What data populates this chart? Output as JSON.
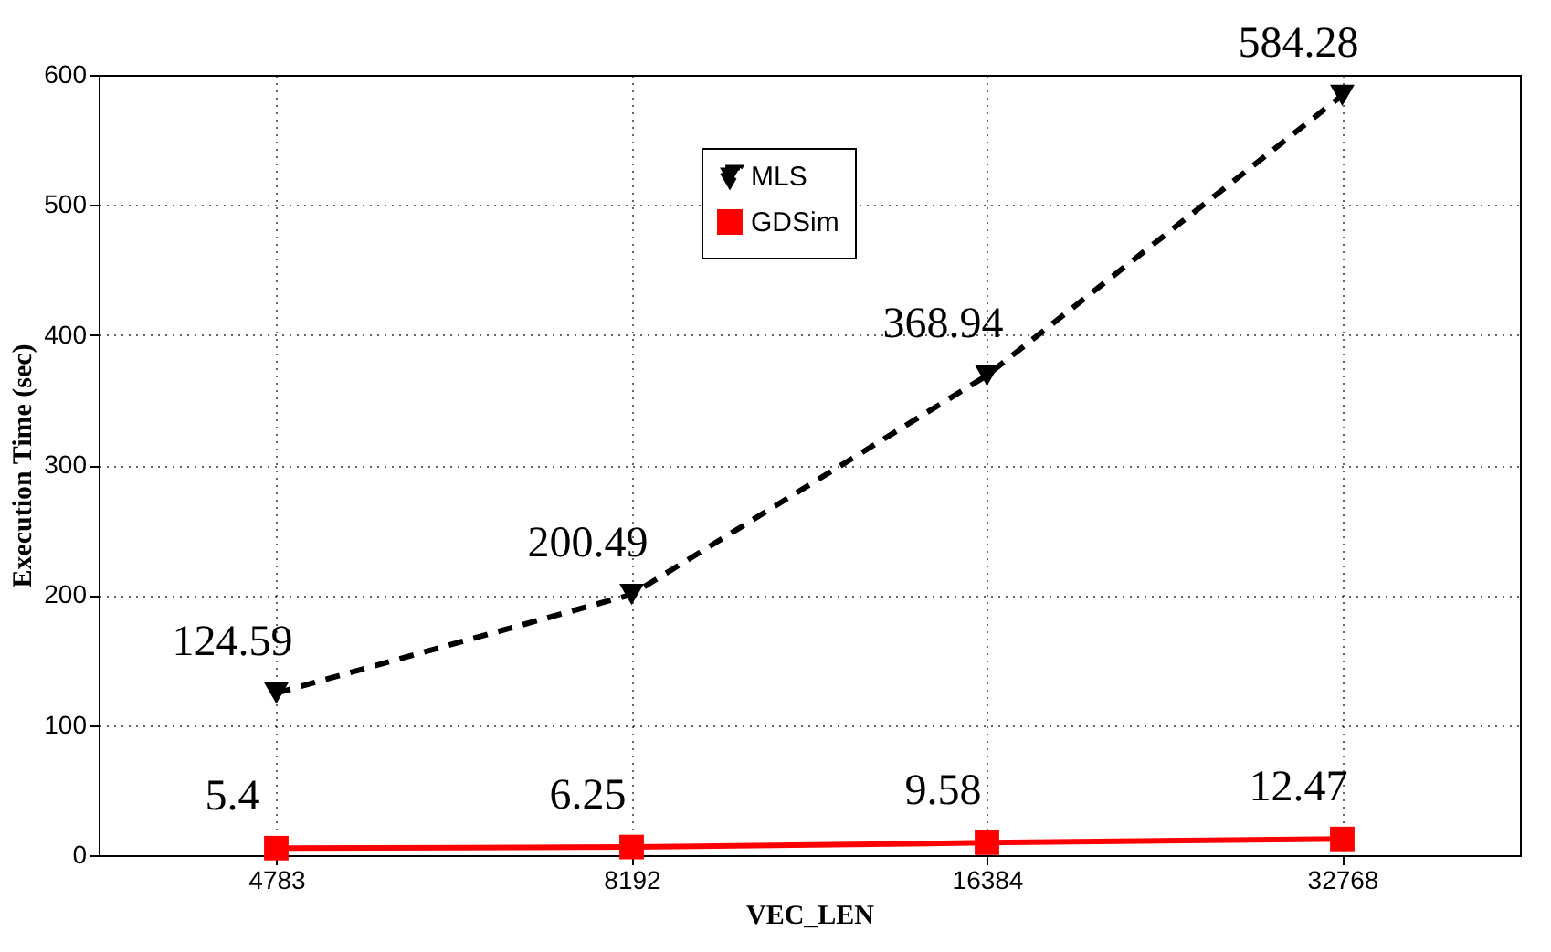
{
  "chart_data": {
    "type": "line",
    "xlabel": "VEC_LEN",
    "ylabel": "Execution Time (sec)",
    "categories": [
      "4783",
      "8192",
      "16384",
      "32768"
    ],
    "series": [
      {
        "name": "MLS",
        "color": "#000000",
        "marker": "triangle",
        "line_style": "dashed",
        "values": [
          124.59,
          200.49,
          368.94,
          584.28
        ]
      },
      {
        "name": "GDSim",
        "color": "#ff0000",
        "marker": "square",
        "line_style": "solid",
        "values": [
          5.4,
          6.25,
          9.58,
          12.47
        ]
      }
    ],
    "ylim": [
      0,
      600
    ],
    "yticks": [
      0,
      100,
      200,
      300,
      400,
      500,
      600
    ],
    "grid": true,
    "legend": "top left",
    "data_labels": true
  }
}
